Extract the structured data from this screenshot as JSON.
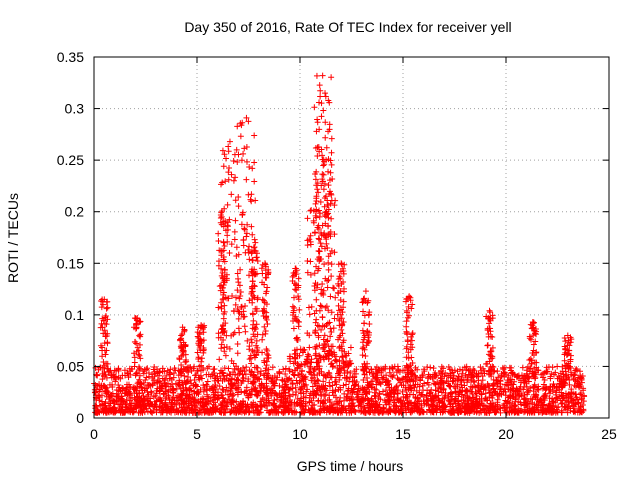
{
  "chart_data": {
    "type": "scatter",
    "title": "Day 350 of 2016, Rate Of TEC Index for receiver yell",
    "xlabel": "GPS time / hours",
    "ylabel": "ROTI / TECUs",
    "xlim": [
      0,
      25
    ],
    "ylim": [
      0,
      0.35
    ],
    "xticks": [
      0,
      5,
      10,
      15,
      20,
      25
    ],
    "yticks": [
      0,
      0.05,
      0.1,
      0.15,
      0.2,
      0.25,
      0.3,
      0.35
    ],
    "xtick_labels": [
      "0",
      "5",
      "10",
      "15",
      "20",
      "25"
    ],
    "ytick_labels": [
      "0",
      "0.05",
      "0.1",
      "0.15",
      "0.2",
      "0.25",
      "0.3",
      "0.35"
    ],
    "grid": true,
    "marker": "plus",
    "color": "#ff0000",
    "x_data_extent": [
      0,
      23.8
    ],
    "base_level_range": [
      0.005,
      0.05
    ],
    "point_count_approx": 3000,
    "series": [
      {
        "name": "ROTI",
        "peaks": [
          {
            "x": 0.5,
            "y": 0.115
          },
          {
            "x": 2.1,
            "y": 0.097
          },
          {
            "x": 4.3,
            "y": 0.088
          },
          {
            "x": 5.2,
            "y": 0.09
          },
          {
            "x": 6.2,
            "y": 0.195
          },
          {
            "x": 6.6,
            "y": 0.268
          },
          {
            "x": 7.4,
            "y": 0.291
          },
          {
            "x": 7.8,
            "y": 0.173
          },
          {
            "x": 8.3,
            "y": 0.15
          },
          {
            "x": 9.8,
            "y": 0.145
          },
          {
            "x": 10.8,
            "y": 0.215
          },
          {
            "x": 11.1,
            "y": 0.332
          },
          {
            "x": 11.3,
            "y": 0.262
          },
          {
            "x": 12.0,
            "y": 0.15
          },
          {
            "x": 13.2,
            "y": 0.123
          },
          {
            "x": 15.3,
            "y": 0.118
          },
          {
            "x": 19.2,
            "y": 0.104
          },
          {
            "x": 21.3,
            "y": 0.093
          },
          {
            "x": 23.0,
            "y": 0.08
          }
        ]
      }
    ]
  }
}
